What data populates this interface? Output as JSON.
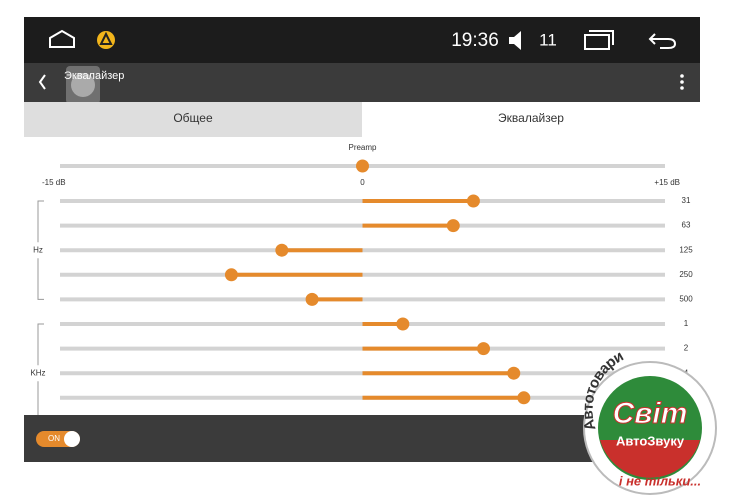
{
  "status_bar": {
    "time": "19:36",
    "volume": "11"
  },
  "header": {
    "title": "Эквалайзер"
  },
  "tabs": [
    "Общее",
    "Эквалайзер"
  ],
  "equalizer": {
    "preamp": {
      "label": "Preamp",
      "value": 0
    },
    "ticks": [
      {
        "value": -15,
        "label": "-15 dB"
      },
      {
        "value": 0,
        "label": "0"
      },
      {
        "value": 15,
        "label": "+15 dB"
      }
    ],
    "group_labels": [
      "Hz",
      "KHz"
    ],
    "bands": [
      {
        "label": "31",
        "value": 5.5
      },
      {
        "label": "63",
        "value": 4.5
      },
      {
        "label": "125",
        "value": -4
      },
      {
        "label": "250",
        "value": -6.5
      },
      {
        "label": "500",
        "value": -2.5
      },
      {
        "label": "1",
        "value": 2
      },
      {
        "label": "2",
        "value": 6
      },
      {
        "label": "4",
        "value": 7.5
      },
      {
        "label": null,
        "value": 8
      }
    ]
  },
  "footer": {
    "toggle": "ON"
  },
  "watermark": {
    "arc": "Автотовари",
    "brand": "Світ",
    "sub": "АвтоЗвуку",
    "tagline": "і не тільки..."
  }
}
